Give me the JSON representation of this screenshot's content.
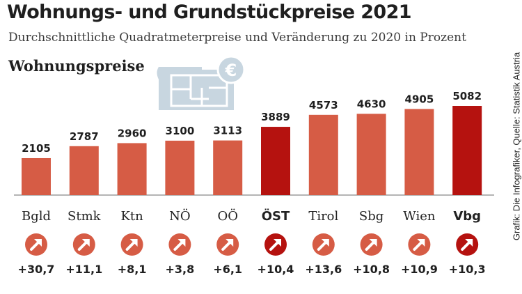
{
  "header": {
    "title": "Wohnungs- und Grundstückpreise 2021",
    "subtitle": "Durchschnittliche Quadratmeterpreise und Veränderung zu 2020 in Prozent",
    "section": "Wohnungspreise"
  },
  "credit": "Grafik: Die Infografiker, Quelle: Statistik Austria",
  "icon": {
    "name": "floorplan-euro-icon",
    "symbol": "€"
  },
  "colors": {
    "bar": "#d65c45",
    "highlight": "#b5120f",
    "arrow_circle": "#d65c45",
    "arrow_circle_highlight": "#b5120f",
    "icon": "#c8d6e0"
  },
  "chart_data": {
    "type": "bar",
    "categories": [
      "Bgld",
      "Stmk",
      "Ktn",
      "NÖ",
      "OÖ",
      "ÖST",
      "Tirol",
      "Sbg",
      "Wien",
      "Vbg"
    ],
    "values": [
      2105,
      2787,
      2960,
      3100,
      3113,
      3889,
      4573,
      4630,
      4905,
      5082
    ],
    "value_labels": [
      "2105",
      "2787",
      "2960",
      "3100",
      "3113",
      "3889",
      "4573",
      "4630",
      "4905",
      "5082"
    ],
    "change_pct": [
      30.7,
      11.1,
      8.1,
      3.8,
      6.1,
      10.4,
      13.6,
      10.8,
      10.9,
      10.3
    ],
    "change_labels": [
      "+30,7",
      "+11,1",
      "+8,1",
      "+3,8",
      "+6,1",
      "+10,4",
      "+13,6",
      "+10,8",
      "+10,9",
      "+10,3"
    ],
    "highlight": [
      "ÖST",
      "Vbg"
    ],
    "ylim": [
      0,
      5082
    ],
    "grid": false,
    "title": "Wohnungspreise",
    "xlabel": "",
    "ylabel": ""
  }
}
